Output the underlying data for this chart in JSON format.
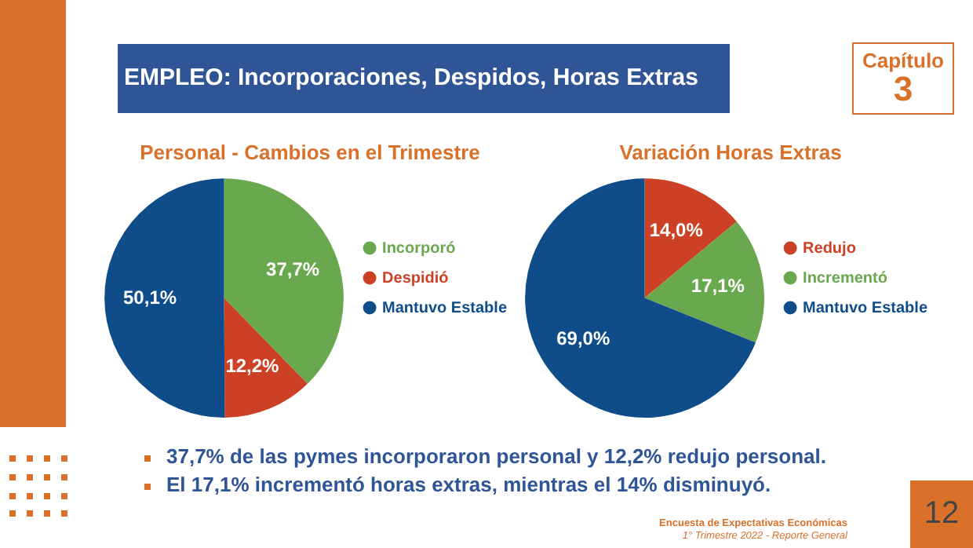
{
  "chart_data": [
    {
      "type": "pie",
      "title": "Personal - Cambios en el Trimestre",
      "categories": [
        "Incorporó",
        "Despidió",
        "Mantuvo Estable"
      ],
      "values": [
        37.7,
        12.2,
        50.1
      ],
      "colors": [
        "#6aa84f",
        "#cc4125",
        "#0f4c8a"
      ],
      "value_labels": [
        "37,7%",
        "12,2%",
        "50,1%"
      ],
      "legend": "right",
      "annotations": [
        "EMPLEO: Incorporaciones, Despidos, Horas Extras",
        "Capítulo",
        "3",
        "37,7% de las pymes incorporaron personal y 12,2% redujo personal.",
        "El 17,1% incrementó horas extras, mientras el 14% disminuyó.",
        "Encuesta de Expectativas Económicas",
        "1° Trimestre 2022 - Reporte General",
        "12"
      ]
    },
    {
      "type": "pie",
      "title": "Variación Horas Extras",
      "categories": [
        "Redujo",
        "Incrementó",
        "Mantuvo Estable"
      ],
      "values": [
        14.0,
        17.1,
        69.0
      ],
      "colors": [
        "#cc4125",
        "#6aa84f",
        "#0f4c8a"
      ],
      "value_labels": [
        "14,0%",
        "17,1%",
        "69,0%"
      ],
      "legend": "right"
    }
  ]
}
